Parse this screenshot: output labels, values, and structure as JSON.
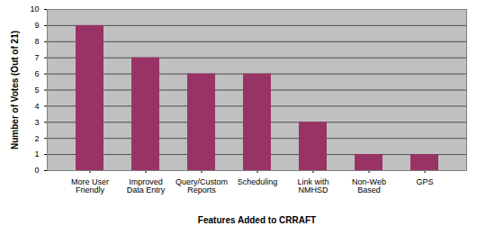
{
  "chart_data": {
    "type": "bar",
    "x_label": "Features Added to CRRAFT",
    "y_label": "Number of Votes (Out of 21)",
    "categories": [
      "More User Friendly",
      "Improved Data Entry",
      "Query/Custom Reports",
      "Scheduling",
      "Link with NMHSD",
      "Non-Web Based",
      "GPS"
    ],
    "values": [
      9,
      7,
      6,
      6,
      3,
      1,
      1
    ],
    "color": "#993366",
    "ylim": [
      0,
      10
    ],
    "yticks": [
      0,
      1,
      2,
      3,
      4,
      5,
      6,
      7,
      8,
      9,
      10
    ],
    "grid": true
  }
}
